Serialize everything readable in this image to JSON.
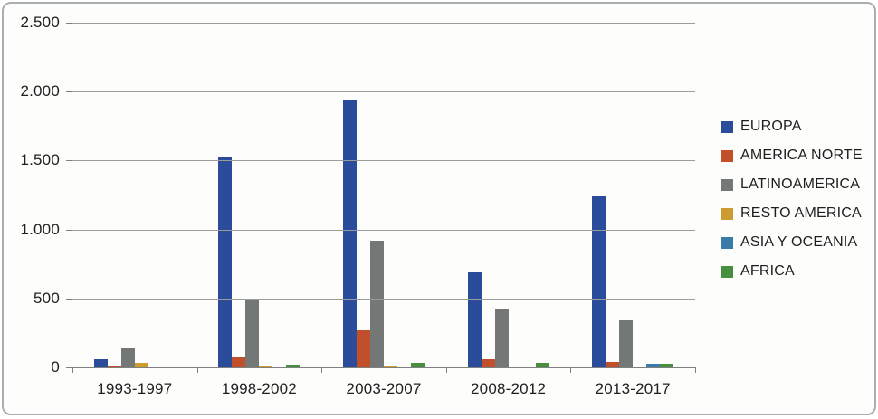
{
  "chart_data": {
    "type": "bar",
    "title": "",
    "xlabel": "",
    "ylabel": "",
    "grid": true,
    "legend_position": "right",
    "categories": [
      "1993-1997",
      "1998-2002",
      "2003-2007",
      "2008-2012",
      "2013-2017"
    ],
    "series": [
      {
        "name": "EUROPA",
        "color": "#2b4b9b",
        "values": [
          60,
          1530,
          1940,
          690,
          1240
        ]
      },
      {
        "name": "AMERICA NORTE",
        "color": "#c1502a",
        "values": [
          10,
          80,
          270,
          60,
          40
        ]
      },
      {
        "name": "LATINOAMERICA",
        "color": "#737876",
        "values": [
          140,
          490,
          920,
          420,
          340
        ]
      },
      {
        "name": "RESTO AMERICA",
        "color": "#cc9c30",
        "values": [
          35,
          10,
          10,
          5,
          5
        ]
      },
      {
        "name": "ASIA Y OCEANIA",
        "color": "#3a7ca8",
        "values": [
          5,
          5,
          5,
          5,
          25
        ]
      },
      {
        "name": "AFRICA",
        "color": "#478f3d",
        "values": [
          5,
          20,
          30,
          35,
          25
        ]
      }
    ],
    "ylim": [
      0,
      2500
    ],
    "y_ticks": [
      {
        "value": 0,
        "label": "0"
      },
      {
        "value": 500,
        "label": "500"
      },
      {
        "value": 1000,
        "label": "1.000"
      },
      {
        "value": 1500,
        "label": "1.500"
      },
      {
        "value": 2000,
        "label": "2.000"
      },
      {
        "value": 2500,
        "label": "2.500"
      }
    ]
  },
  "style": {
    "grid_color": "#9b9b9b",
    "axis_color": "#7f7f7f",
    "text_color": "#1f1f1f",
    "frame_border_color": "#a9aeb1",
    "background": "#fdfdfc"
  }
}
